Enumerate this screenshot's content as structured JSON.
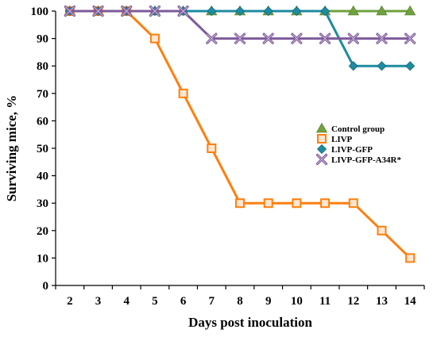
{
  "chart_data": {
    "type": "line",
    "title": "",
    "xlabel": "Days post inoculation",
    "ylabel": "Surviving mice, %",
    "x": [
      2,
      3,
      4,
      5,
      6,
      7,
      8,
      9,
      10,
      11,
      12,
      13,
      14
    ],
    "xlim": [
      1.5,
      14.5
    ],
    "ylim": [
      0,
      100
    ],
    "y_ticks": [
      0,
      10,
      20,
      30,
      40,
      50,
      60,
      70,
      80,
      90,
      100
    ],
    "grid": false,
    "legend_placement": "right",
    "series": [
      {
        "name": "Control group",
        "color": "#70a040",
        "marker": "triangle",
        "values": [
          100,
          100,
          100,
          100,
          100,
          100,
          100,
          100,
          100,
          100,
          100,
          100,
          100
        ]
      },
      {
        "name": "LIVP",
        "color": "#ff7f0e",
        "marker": "square",
        "values": [
          100,
          100,
          100,
          90,
          70,
          50,
          30,
          30,
          30,
          30,
          30,
          20,
          10
        ]
      },
      {
        "name": "LIVP-GFP",
        "color": "#1f8ba0",
        "marker": "diamond",
        "values": [
          100,
          100,
          100,
          100,
          100,
          100,
          100,
          100,
          100,
          100,
          80,
          80,
          80
        ]
      },
      {
        "name": "LIVP-GFP-A34R*",
        "color": "#7e5a9b",
        "marker": "x",
        "values": [
          100,
          100,
          100,
          100,
          100,
          90,
          90,
          90,
          90,
          90,
          90,
          90,
          90
        ]
      }
    ]
  }
}
